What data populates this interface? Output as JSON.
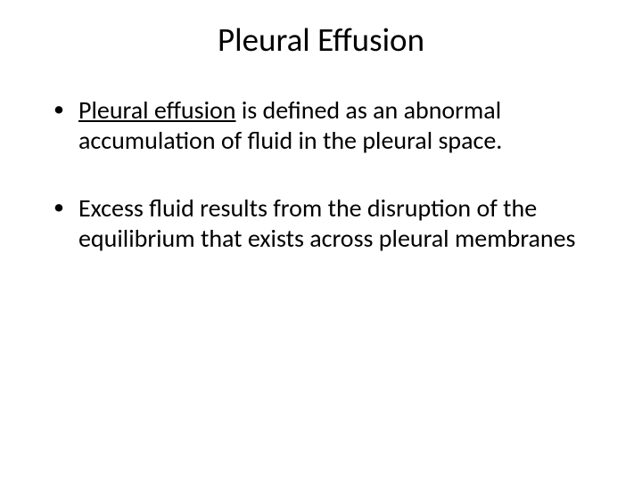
{
  "slide": {
    "title": "Pleural Effusion",
    "bullets": [
      {
        "underlined_lead": "Pleural effusion",
        "rest": " is defined as an abnormal accumulation of fluid in the pleural space."
      },
      {
        "underlined_lead": "",
        "rest": " Excess fluid results from the disruption of the equilibrium that exists across pleural membranes"
      }
    ]
  },
  "style": {
    "background_color": "#ffffff",
    "text_color": "#000000",
    "title_fontsize": 37,
    "body_fontsize": 28,
    "font_family": "Calibri"
  }
}
